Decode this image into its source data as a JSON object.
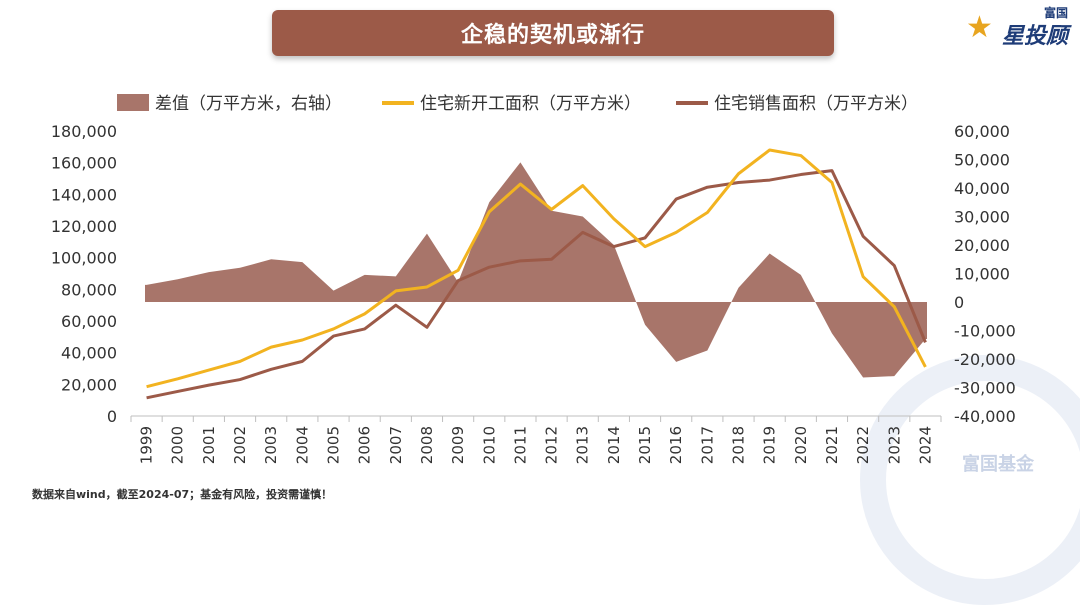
{
  "title": "企稳的契机或渐行",
  "brand": {
    "small": "富国",
    "main": "星投顾"
  },
  "footnote": "数据来自wind，截至2024-07；基金有风险，投资需谨慎！",
  "watermark": "富国基金",
  "colors": {
    "banner": "#9c5a48",
    "area": "#a8756a",
    "new_start": "#f2b320",
    "sales": "#9c5a48"
  },
  "chart_data": {
    "type": "line+area",
    "title": "企稳的契机或渐行",
    "categories": [
      "1999",
      "2000",
      "2001",
      "2002",
      "2003",
      "2004",
      "2005",
      "2006",
      "2007",
      "2008",
      "2009",
      "2010",
      "2011",
      "2012",
      "2013",
      "2014",
      "2015",
      "2016",
      "2017",
      "2018",
      "2019",
      "2020",
      "2021",
      "2022",
      "2023",
      "2024"
    ],
    "left_axis": {
      "min": 0,
      "max": 180000,
      "ticks": [
        "0",
        "20,000",
        "40,000",
        "60,000",
        "80,000",
        "100,000",
        "120,000",
        "140,000",
        "160,000",
        "180,000"
      ]
    },
    "right_axis": {
      "min": -40000,
      "max": 60000,
      "ticks": [
        "-40,000",
        "-30,000",
        "-20,000",
        "-10,000",
        "0",
        "10,000",
        "20,000",
        "30,000",
        "40,000",
        "50,000",
        "60,000"
      ]
    },
    "series": [
      {
        "name": "差值（万平方米，右轴）",
        "type": "area",
        "axis": "right",
        "values": [
          6000,
          8000,
          10500,
          12000,
          15000,
          14000,
          4000,
          9500,
          9000,
          24000,
          7000,
          35000,
          49000,
          32000,
          30000,
          20000,
          -8000,
          -21000,
          -17000,
          5000,
          17000,
          9500,
          -11000,
          -26500,
          -26000,
          -13000
        ]
      },
      {
        "name": "住宅新开工面积（万平方米）",
        "type": "line",
        "axis": "left",
        "values": [
          18500,
          23500,
          29000,
          34500,
          43500,
          48000,
          55000,
          64500,
          79000,
          81500,
          92000,
          129000,
          146500,
          130500,
          145500,
          124500,
          107000,
          116000,
          128500,
          153000,
          168000,
          164500,
          147500,
          88000,
          69000,
          31000
        ]
      },
      {
        "name": "住宅销售面积（万平方米）",
        "type": "line",
        "axis": "left",
        "values": [
          11500,
          15500,
          19500,
          23000,
          29500,
          34500,
          50500,
          55000,
          70000,
          56000,
          85500,
          94000,
          98000,
          99000,
          116000,
          107000,
          112500,
          137000,
          144500,
          147500,
          149000,
          152500,
          155000,
          113500,
          95000,
          46500
        ]
      }
    ],
    "legend_position": "top"
  }
}
